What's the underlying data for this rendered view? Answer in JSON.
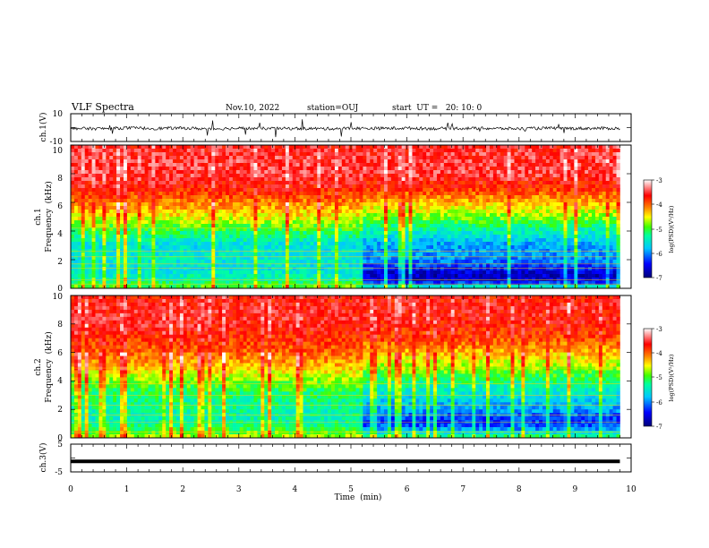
{
  "header": {
    "title": "VLF Spectra",
    "date": "Nov.10, 2022",
    "station": "station=OUJ",
    "start_time": "start  UT =   20: 10: 0"
  },
  "colors": {
    "background": "#ffffff",
    "axes": "#000000",
    "waveform": "#000000",
    "colormap": [
      "#00007a",
      "#0000ff",
      "#00ffff",
      "#00ff40",
      "#ffff00",
      "#ff8000",
      "#ff0000",
      "#ffffff"
    ]
  },
  "chart_data": [
    {
      "id": "ch1-waveform",
      "type": "line",
      "ylabel": "ch.1(V)",
      "ylim": [
        -10,
        10
      ],
      "yticks": [
        "10",
        "-10"
      ],
      "xlim": [
        0,
        10
      ],
      "series": [
        {
          "x": [
            0,
            0.5,
            1,
            1.5,
            2,
            2.5,
            3,
            3.5,
            4,
            4.5,
            5,
            5.5,
            6,
            6.5,
            7,
            7.5,
            8,
            8.5,
            9,
            9.5,
            9.8
          ],
          "y": [
            -0.5,
            -0.8,
            -0.3,
            -0.6,
            -0.4,
            -0.9,
            -0.5,
            -0.7,
            -0.6,
            -0.8,
            -0.5,
            -0.6,
            -0.4,
            -0.7,
            -0.5,
            -0.6,
            -0.8,
            -0.4,
            -0.6,
            -0.5,
            -0.6
          ]
        }
      ],
      "grid": false
    },
    {
      "id": "ch1-spectrogram",
      "type": "heatmap",
      "ylabel": "ch.1",
      "ylabel2": "Frequency  (kHz)",
      "ylim": [
        0,
        10
      ],
      "yticks": [
        "0",
        "2",
        "4",
        "6",
        "8",
        "10"
      ],
      "xlim": [
        0,
        10
      ],
      "data_end_min": 9.8,
      "colorbar": {
        "label": "log(PSD)(V²/Hz)",
        "range": [
          -7,
          -3
        ],
        "ticks": [
          "-3",
          "-4",
          "-5",
          "-6",
          "-7"
        ]
      },
      "level_profile": {
        "freq_khz": [
          0,
          0.5,
          1,
          1.5,
          2,
          3,
          4,
          5,
          6,
          7,
          8,
          9,
          10
        ],
        "before_5_2_min": [
          -4.8,
          -5.3,
          -5.5,
          -5.6,
          -5.5,
          -5.6,
          -5.1,
          -4.5,
          -4.1,
          -3.7,
          -3.5,
          -3.5,
          -3.6
        ],
        "after_5_2_min": [
          -5.2,
          -6.6,
          -6.7,
          -6.3,
          -6.0,
          -5.9,
          -5.4,
          -4.8,
          -4.3,
          -3.8,
          -3.5,
          -3.5,
          -3.6
        ]
      }
    },
    {
      "id": "ch2-spectrogram",
      "type": "heatmap",
      "ylabel": "ch.2",
      "ylabel2": "Frequency  (kHz)",
      "ylim": [
        0,
        10
      ],
      "yticks": [
        "0",
        "2",
        "4",
        "6",
        "8",
        "10"
      ],
      "xlim": [
        0,
        10
      ],
      "data_end_min": 9.8,
      "colorbar": {
        "label": "log(PSD)(V²/Hz)",
        "range": [
          -7,
          -3
        ],
        "ticks": [
          "-3",
          "-4",
          "-5",
          "-6",
          "-7"
        ]
      },
      "level_profile": {
        "freq_khz": [
          0,
          0.5,
          1,
          1.5,
          2,
          3,
          4,
          5,
          6,
          7,
          8,
          9,
          10
        ],
        "before_5_2_min": [
          -4.6,
          -5.0,
          -5.3,
          -5.4,
          -5.3,
          -5.2,
          -4.8,
          -4.3,
          -4.0,
          -3.8,
          -3.6,
          -3.6,
          -3.7
        ],
        "after_5_2_min": [
          -5.0,
          -5.8,
          -6.3,
          -6.2,
          -5.9,
          -5.6,
          -5.2,
          -4.7,
          -4.3,
          -3.9,
          -3.7,
          -3.6,
          -3.7
        ]
      }
    },
    {
      "id": "ch3-waveform",
      "type": "line",
      "ylabel": "ch.3(V)",
      "ylim": [
        -5,
        5
      ],
      "yticks": [
        "5",
        "-5"
      ],
      "xlim": [
        0,
        10
      ],
      "series": [
        {
          "x": [
            0,
            9.8
          ],
          "y": [
            -1.2,
            -1.2
          ]
        }
      ],
      "grid": false
    }
  ],
  "x_axis": {
    "label": "Time  (min)",
    "ticks": [
      "0",
      "1",
      "2",
      "3",
      "4",
      "5",
      "6",
      "7",
      "8",
      "9",
      "10"
    ]
  }
}
